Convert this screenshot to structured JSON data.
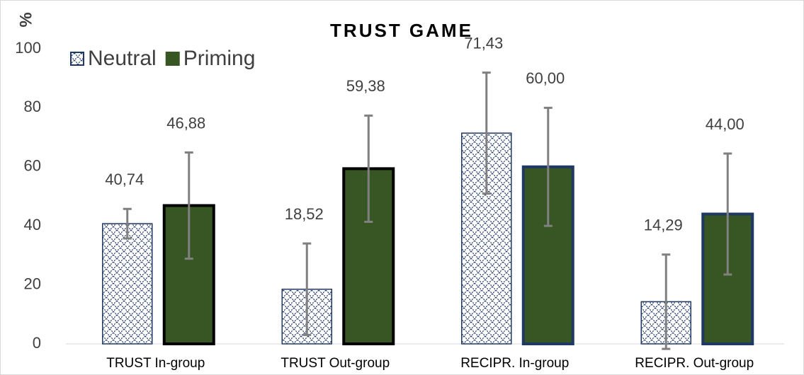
{
  "chart_data": {
    "type": "bar",
    "title": "TRUST GAME",
    "y_label": "%",
    "categories": [
      "TRUST In-group",
      "TRUST Out-group",
      "RECIPR. In-group",
      "RECIPR. Out-group"
    ],
    "series": [
      {
        "name": "Neutral",
        "color": "#1f3864",
        "pattern": "crosshatch",
        "values": [
          40.74,
          18.52,
          71.43,
          14.29
        ],
        "value_labels": [
          "40,74",
          "18,52",
          "71,43",
          "14,29"
        ],
        "errors": [
          5,
          15.5,
          20.5,
          16
        ],
        "edgecolors": [
          "#1f3864",
          "#1f3864",
          "#1f3864",
          "#1f3864"
        ]
      },
      {
        "name": "Priming",
        "color": "#375623",
        "pattern": "solid",
        "values": [
          46.88,
          59.38,
          60.0,
          44.0
        ],
        "value_labels": [
          "46,88",
          "59,38",
          "60,00",
          "44,00"
        ],
        "errors": [
          18,
          18,
          20,
          20.5
        ],
        "edgecolors": [
          "#000000",
          "#000000",
          "#1f3864",
          "#1f3864"
        ]
      }
    ],
    "ylim": [
      0,
      100
    ],
    "yticks": [
      0,
      20,
      40,
      60,
      80,
      100
    ],
    "grid": false,
    "legend": "top-left",
    "error_color": "#808080"
  }
}
